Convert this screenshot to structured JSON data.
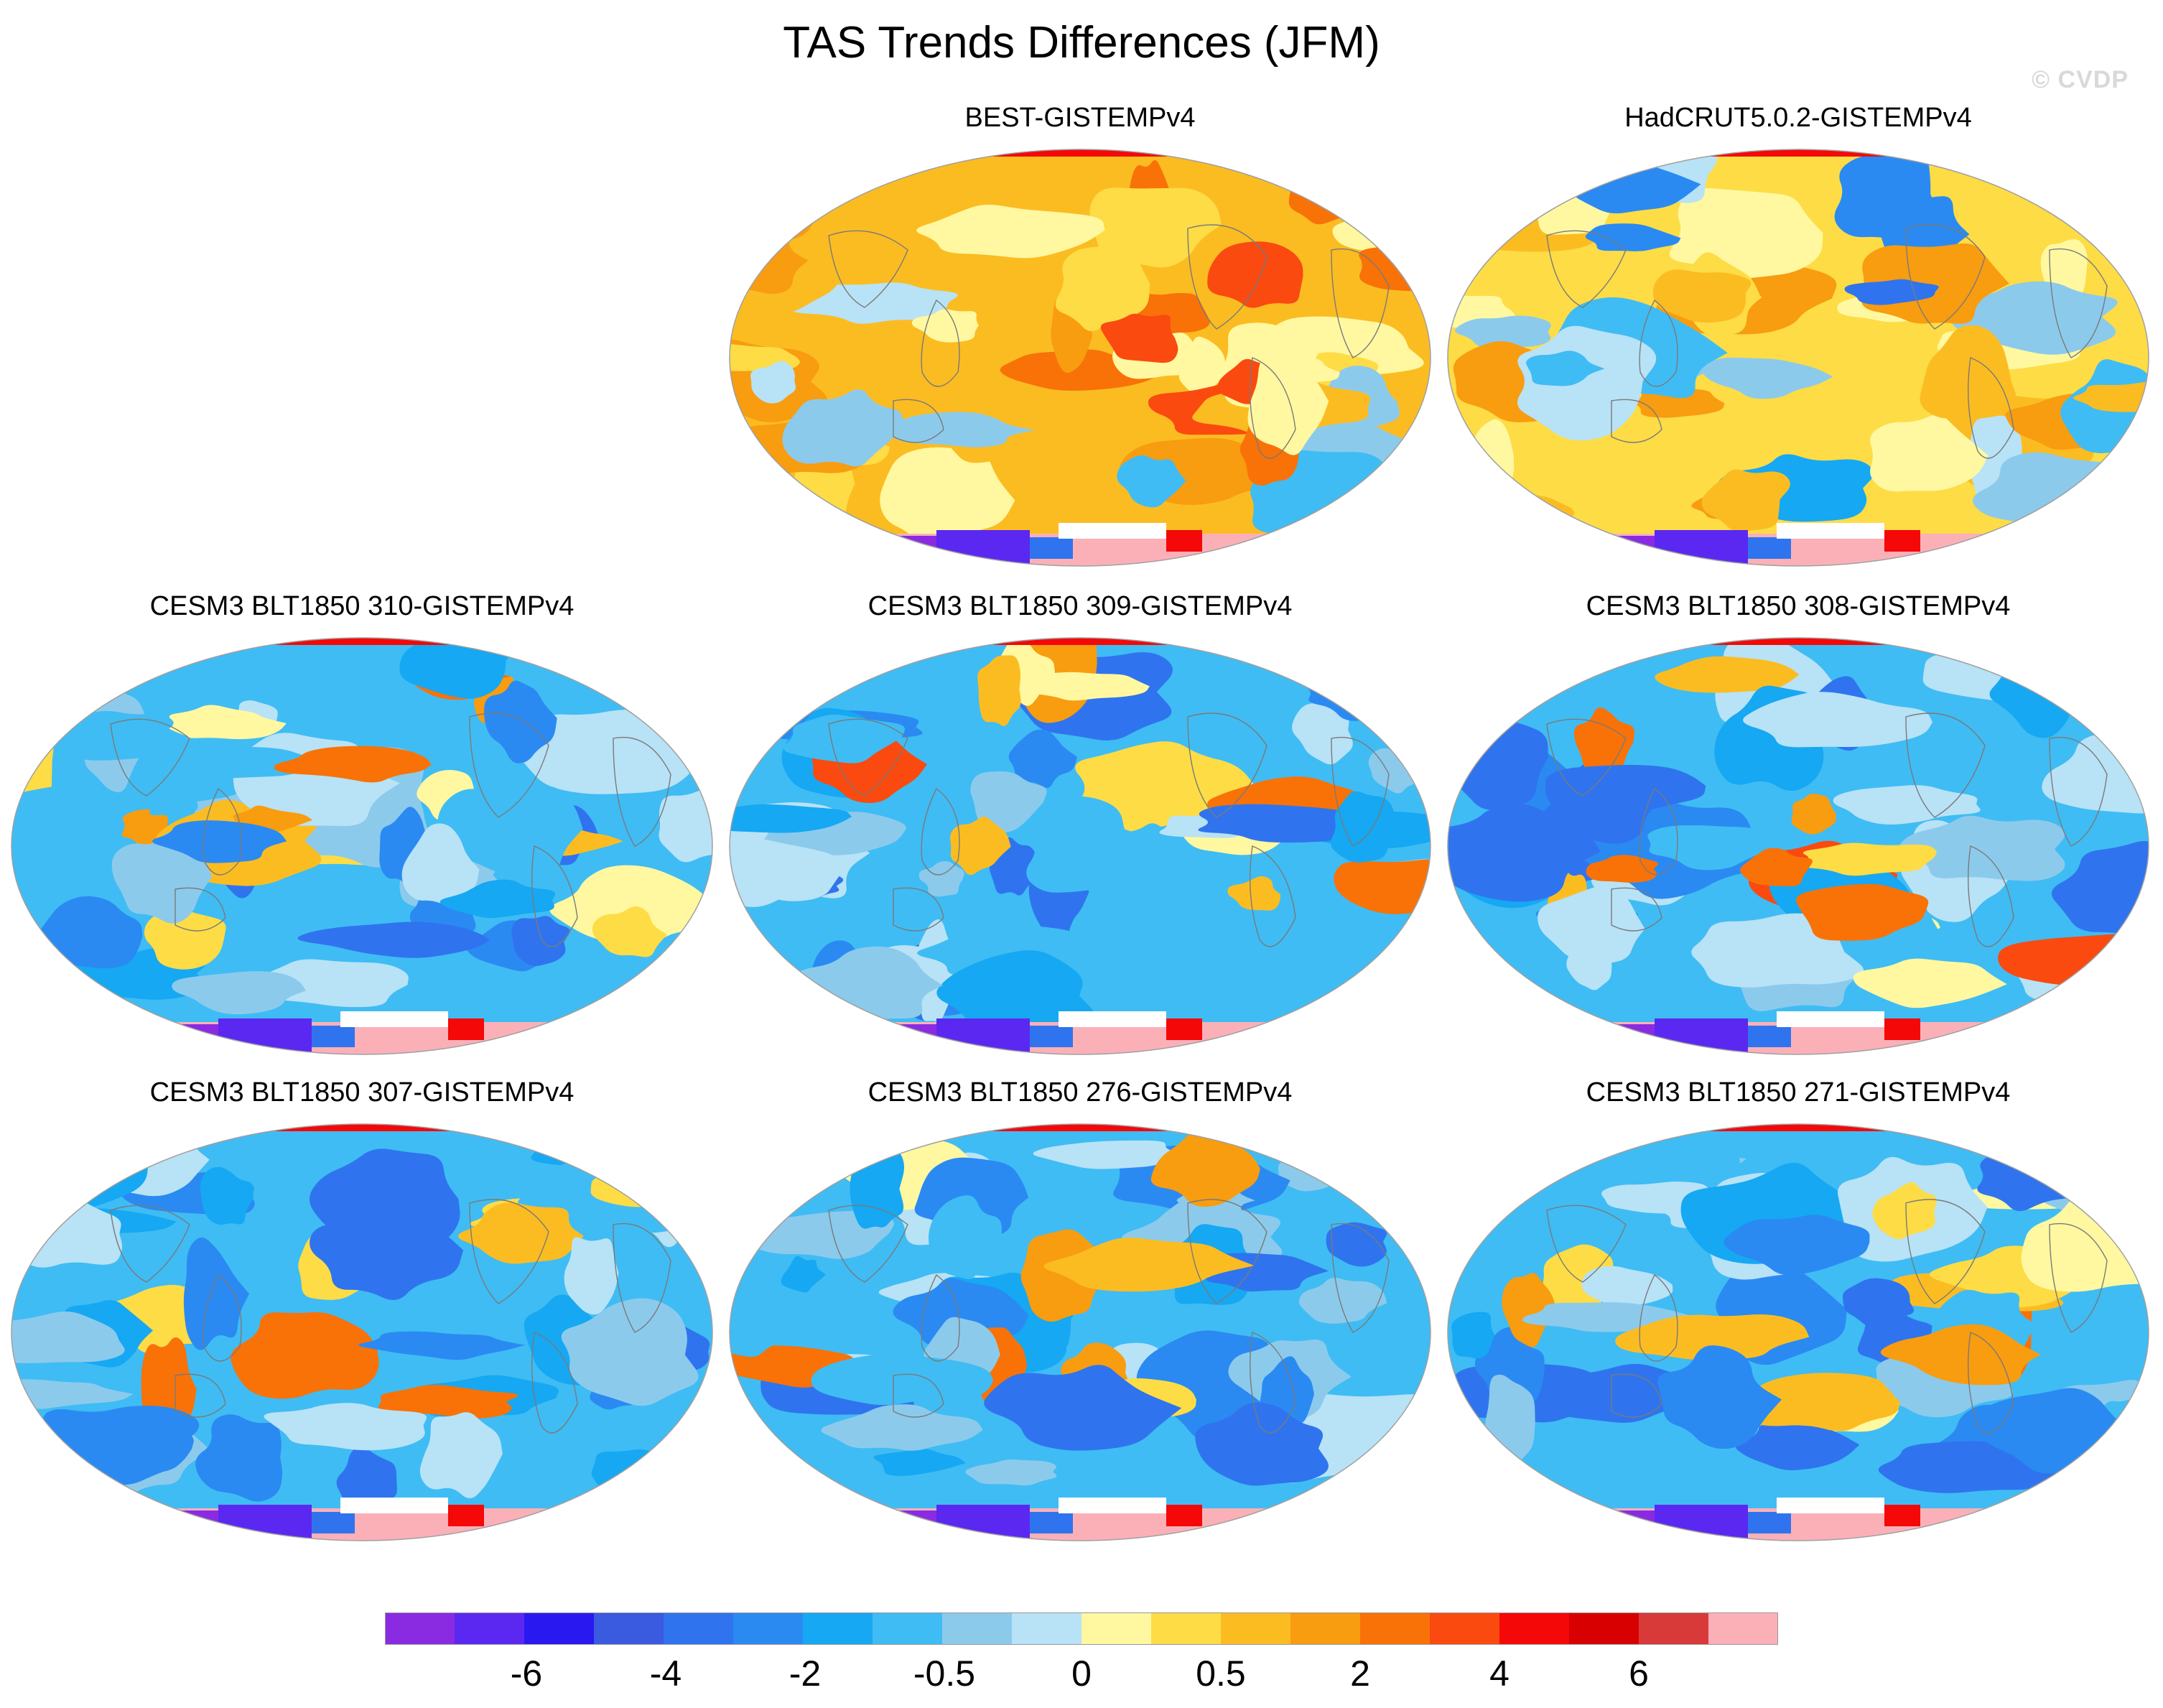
{
  "title": "TAS Trends Differences (JFM)",
  "watermark": "© CVDP",
  "panels": [
    {
      "label": "BEST-GISTEMPv4",
      "base": "warm"
    },
    {
      "label": "HadCRUT5.0.2-GISTEMPv4",
      "base": "mild"
    },
    {
      "label": "CESM3 BLT1850 310-GISTEMPv4",
      "base": "cool"
    },
    {
      "label": "CESM3 BLT1850 309-GISTEMPv4",
      "base": "cool"
    },
    {
      "label": "CESM3 BLT1850 308-GISTEMPv4",
      "base": "cool"
    },
    {
      "label": "CESM3 BLT1850 307-GISTEMPv4",
      "base": "cool"
    },
    {
      "label": "CESM3 BLT1850 276-GISTEMPv4",
      "base": "cool"
    },
    {
      "label": "CESM3 BLT1850 271-GISTEMPv4",
      "base": "cool"
    }
  ],
  "colorbar": {
    "colors": [
      "#8a2be2",
      "#5a28f0",
      "#2a18f0",
      "#3a5ae0",
      "#2f74ee",
      "#2a8af2",
      "#16a8f2",
      "#3fbcf4",
      "#8ccaec",
      "#b8e2f6",
      "#fff8a0",
      "#fddc46",
      "#fbbc22",
      "#f89c10",
      "#f87208",
      "#fa4a10",
      "#f40808",
      "#d80000",
      "#d83a3a",
      "#fbb0b8"
    ],
    "labels": [
      "-6",
      "-4",
      "-2",
      "-0.5",
      "0",
      "0.5",
      "2",
      "4",
      "6"
    ]
  }
}
